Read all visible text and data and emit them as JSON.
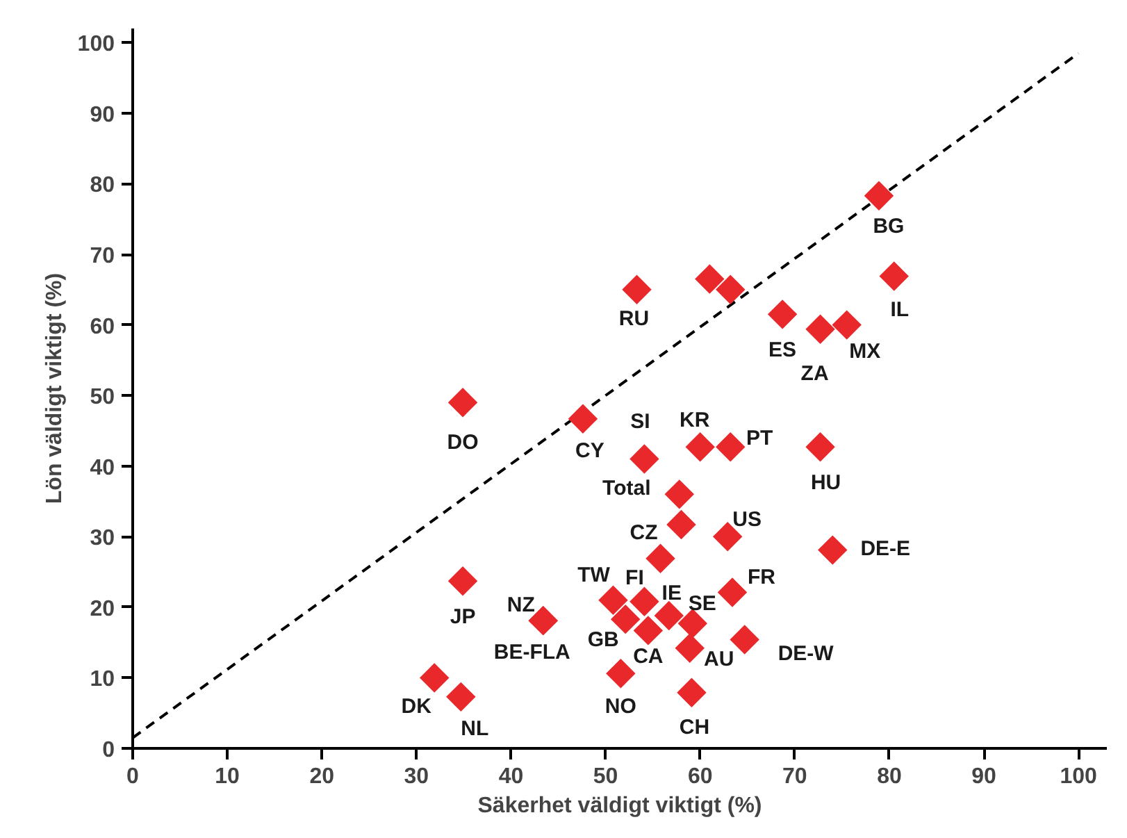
{
  "chart_data": {
    "type": "scatter",
    "xlabel": "Säkerhet väldigt viktigt (%)",
    "ylabel": "Lön väldigt viktigt (%)",
    "xlim": [
      0,
      103
    ],
    "ylim": [
      0,
      102
    ],
    "xticks": [
      0,
      10,
      20,
      30,
      40,
      50,
      60,
      70,
      80,
      90,
      100
    ],
    "yticks": [
      0,
      10,
      20,
      30,
      40,
      50,
      60,
      70,
      80,
      90,
      100
    ],
    "grid": false,
    "series": [
      {
        "color": "#e8282b",
        "marker": "diamond",
        "x": [
          78.9,
          80.5,
          61.0,
          63.2,
          53.3,
          68.7,
          72.7,
          75.5,
          34.9,
          47.6,
          54.1,
          57.8,
          60.0,
          63.2,
          72.7,
          58.0,
          55.8,
          62.9,
          74.0,
          50.8,
          54.1,
          56.7,
          59.2,
          52.1,
          54.5,
          58.9,
          63.4,
          64.7,
          59.1,
          51.6,
          43.4,
          43.4,
          34.9,
          31.9,
          34.7
        ],
        "values": [
          78.3,
          66.9,
          66.5,
          65.0,
          65.0,
          61.5,
          59.4,
          60.0,
          49.0,
          46.7,
          41.0,
          36.0,
          42.7,
          42.7,
          42.7,
          31.7,
          26.9,
          30.0,
          28.1,
          21.0,
          20.8,
          18.8,
          17.7,
          18.3,
          16.7,
          14.2,
          22.1,
          15.4,
          7.9,
          10.6,
          18.1,
          18.1,
          23.7,
          10.0,
          7.3
        ],
        "value_labels": [
          "BG",
          "IL",
          null,
          null,
          "RU",
          "ES",
          "ZA",
          "MX",
          "DO",
          "CY",
          "SI",
          "Total",
          "KR",
          "PT",
          "HU",
          "CZ",
          null,
          "US",
          "DE-E",
          "TW",
          "FI",
          "IE",
          "SE",
          "GB",
          "CA",
          "AU",
          "FR",
          "DE-W",
          "CH",
          "NO",
          "NZ",
          "BE-FLA",
          "JP",
          "DK",
          "NL"
        ]
      },
      {
        "type": "line",
        "color": "#000000",
        "line_style": "dashed",
        "marker": "none",
        "x": [
          0,
          100
        ],
        "values": [
          1.5,
          98.5
        ]
      }
    ]
  }
}
